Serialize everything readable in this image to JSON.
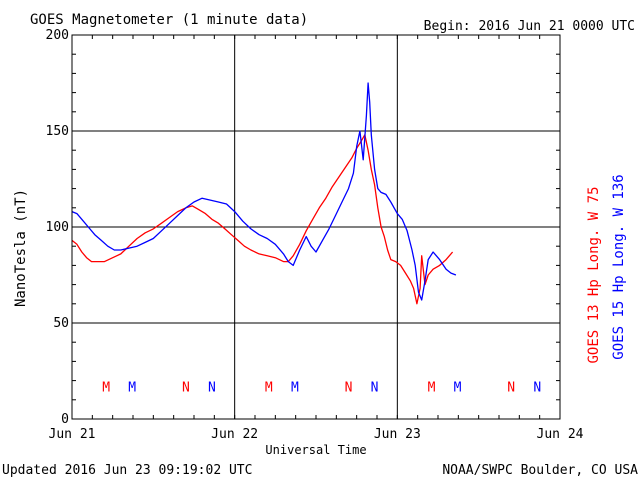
{
  "chart_data": {
    "type": "line",
    "title": "GOES Magnetometer (1 minute data)",
    "begin_label": "Begin:  2016 Jun 21 0000 UTC",
    "xlabel": "Universal Time",
    "ylabel": "NanoTesla (nT)",
    "footer_left": "Updated 2016 Jun 23 09:19:02 UTC",
    "footer_right": "NOAA/SWPC Boulder, CO USA",
    "x_unit": "days since Jun 21 0000 UTC",
    "xlim": [
      0,
      3
    ],
    "ylim": [
      0,
      200
    ],
    "yticks": [
      0,
      50,
      100,
      150,
      200
    ],
    "xticks": [
      {
        "value": 0,
        "label": "Jun 21"
      },
      {
        "value": 1,
        "label": "Jun 22"
      },
      {
        "value": 2,
        "label": "Jun 23"
      },
      {
        "value": 3,
        "label": "Jun 24"
      }
    ],
    "grid": true,
    "series": [
      {
        "name": "GOES 13 Hp  Long. W 75",
        "color": "#ff0000",
        "points": [
          [
            0.0,
            93
          ],
          [
            0.03,
            91
          ],
          [
            0.06,
            87
          ],
          [
            0.09,
            84
          ],
          [
            0.12,
            82
          ],
          [
            0.16,
            82
          ],
          [
            0.2,
            82
          ],
          [
            0.25,
            84
          ],
          [
            0.3,
            86
          ],
          [
            0.35,
            90
          ],
          [
            0.4,
            94
          ],
          [
            0.45,
            97
          ],
          [
            0.5,
            99
          ],
          [
            0.55,
            102
          ],
          [
            0.6,
            105
          ],
          [
            0.65,
            108
          ],
          [
            0.7,
            110
          ],
          [
            0.74,
            111
          ],
          [
            0.78,
            109
          ],
          [
            0.82,
            107
          ],
          [
            0.86,
            104
          ],
          [
            0.9,
            102
          ],
          [
            0.94,
            99
          ],
          [
            0.98,
            96
          ],
          [
            1.02,
            93
          ],
          [
            1.06,
            90
          ],
          [
            1.1,
            88
          ],
          [
            1.15,
            86
          ],
          [
            1.2,
            85
          ],
          [
            1.25,
            84
          ],
          [
            1.3,
            82
          ],
          [
            1.33,
            82
          ],
          [
            1.36,
            85
          ],
          [
            1.4,
            91
          ],
          [
            1.44,
            98
          ],
          [
            1.48,
            104
          ],
          [
            1.52,
            110
          ],
          [
            1.56,
            115
          ],
          [
            1.6,
            121
          ],
          [
            1.64,
            126
          ],
          [
            1.68,
            131
          ],
          [
            1.72,
            136
          ],
          [
            1.75,
            141
          ],
          [
            1.78,
            145
          ],
          [
            1.8,
            148
          ],
          [
            1.82,
            140
          ],
          [
            1.84,
            130
          ],
          [
            1.86,
            122
          ],
          [
            1.88,
            110
          ],
          [
            1.9,
            100
          ],
          [
            1.92,
            95
          ],
          [
            1.94,
            88
          ],
          [
            1.96,
            83
          ],
          [
            1.99,
            82
          ],
          [
            2.02,
            80
          ],
          [
            2.05,
            76
          ],
          [
            2.08,
            72
          ],
          [
            2.1,
            68
          ],
          [
            2.12,
            60
          ],
          [
            2.14,
            68
          ],
          [
            2.15,
            85
          ],
          [
            2.17,
            70
          ],
          [
            2.19,
            75
          ],
          [
            2.22,
            78
          ],
          [
            2.26,
            80
          ],
          [
            2.3,
            83
          ],
          [
            2.34,
            87
          ]
        ]
      },
      {
        "name": "GOES 15 Hp  Long. W 136",
        "color": "#0000ff",
        "points": [
          [
            0.0,
            108
          ],
          [
            0.03,
            107
          ],
          [
            0.06,
            104
          ],
          [
            0.1,
            100
          ],
          [
            0.14,
            96
          ],
          [
            0.18,
            93
          ],
          [
            0.22,
            90
          ],
          [
            0.26,
            88
          ],
          [
            0.3,
            88
          ],
          [
            0.35,
            89
          ],
          [
            0.4,
            90
          ],
          [
            0.45,
            92
          ],
          [
            0.5,
            94
          ],
          [
            0.55,
            98
          ],
          [
            0.6,
            102
          ],
          [
            0.65,
            106
          ],
          [
            0.7,
            110
          ],
          [
            0.75,
            113
          ],
          [
            0.8,
            115
          ],
          [
            0.85,
            114
          ],
          [
            0.9,
            113
          ],
          [
            0.95,
            112
          ],
          [
            1.0,
            108
          ],
          [
            1.05,
            103
          ],
          [
            1.1,
            99
          ],
          [
            1.15,
            96
          ],
          [
            1.2,
            94
          ],
          [
            1.25,
            91
          ],
          [
            1.3,
            86
          ],
          [
            1.33,
            82
          ],
          [
            1.36,
            80
          ],
          [
            1.4,
            88
          ],
          [
            1.44,
            95
          ],
          [
            1.47,
            90
          ],
          [
            1.5,
            87
          ],
          [
            1.54,
            93
          ],
          [
            1.58,
            99
          ],
          [
            1.62,
            106
          ],
          [
            1.66,
            113
          ],
          [
            1.7,
            120
          ],
          [
            1.73,
            128
          ],
          [
            1.75,
            142
          ],
          [
            1.77,
            150
          ],
          [
            1.79,
            135
          ],
          [
            1.81,
            158
          ],
          [
            1.82,
            175
          ],
          [
            1.83,
            165
          ],
          [
            1.84,
            148
          ],
          [
            1.86,
            130
          ],
          [
            1.88,
            120
          ],
          [
            1.9,
            118
          ],
          [
            1.93,
            117
          ],
          [
            1.96,
            113
          ],
          [
            2.0,
            107
          ],
          [
            2.03,
            104
          ],
          [
            2.06,
            98
          ],
          [
            2.09,
            88
          ],
          [
            2.11,
            80
          ],
          [
            2.13,
            66
          ],
          [
            2.15,
            62
          ],
          [
            2.17,
            72
          ],
          [
            2.19,
            83
          ],
          [
            2.22,
            87
          ],
          [
            2.26,
            83
          ],
          [
            2.3,
            78
          ],
          [
            2.33,
            76
          ],
          [
            2.36,
            75
          ]
        ]
      }
    ],
    "markers": [
      {
        "x": 0.21,
        "label": "M",
        "color": "#ff0000"
      },
      {
        "x": 0.37,
        "label": "M",
        "color": "#0000ff"
      },
      {
        "x": 0.7,
        "label": "N",
        "color": "#ff0000"
      },
      {
        "x": 0.86,
        "label": "N",
        "color": "#0000ff"
      },
      {
        "x": 1.21,
        "label": "M",
        "color": "#ff0000"
      },
      {
        "x": 1.37,
        "label": "M",
        "color": "#0000ff"
      },
      {
        "x": 1.7,
        "label": "N",
        "color": "#ff0000"
      },
      {
        "x": 1.86,
        "label": "N",
        "color": "#0000ff"
      },
      {
        "x": 2.21,
        "label": "M",
        "color": "#ff0000"
      },
      {
        "x": 2.37,
        "label": "M",
        "color": "#0000ff"
      },
      {
        "x": 2.7,
        "label": "N",
        "color": "#ff0000"
      },
      {
        "x": 2.86,
        "label": "N",
        "color": "#0000ff"
      }
    ],
    "marker_y": 17
  }
}
